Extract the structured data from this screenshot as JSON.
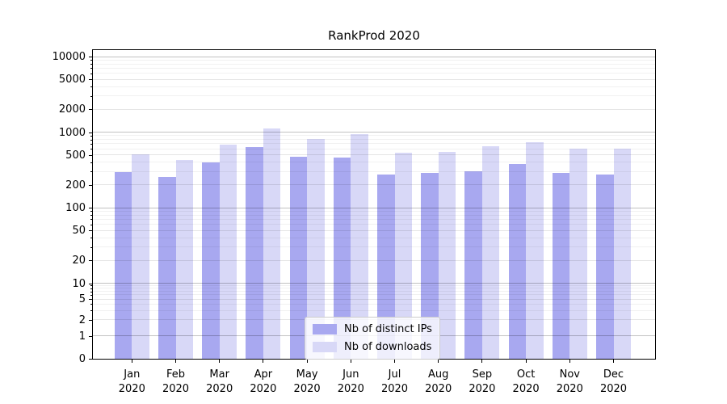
{
  "chart_data": {
    "type": "bar",
    "title": "RankProd 2020",
    "y_scale": "symlog",
    "grid": true,
    "categories": [
      "Jan 2020",
      "Feb 2020",
      "Mar 2020",
      "Apr 2020",
      "May 2020",
      "Jun 2020",
      "Jul 2020",
      "Aug 2020",
      "Sep 2020",
      "Oct 2020",
      "Nov 2020",
      "Dec 2020"
    ],
    "x_tick_months": [
      "Jan",
      "Feb",
      "Mar",
      "Apr",
      "May",
      "Jun",
      "Jul",
      "Aug",
      "Sep",
      "Oct",
      "Nov",
      "Dec"
    ],
    "x_tick_year": "2020",
    "y_ticks": [
      0,
      1,
      2,
      5,
      10,
      20,
      50,
      100,
      200,
      500,
      1000,
      2000,
      5000,
      10000
    ],
    "ylim": [
      0,
      12000
    ],
    "series": [
      {
        "name": "Nb of distinct IPs",
        "color": "#a8a8f0",
        "values": [
          300,
          257,
          400,
          650,
          480,
          465,
          280,
          295,
          310,
          380,
          290,
          280
        ]
      },
      {
        "name": "Nb of downloads",
        "color": "#d8d8f7",
        "values": [
          510,
          430,
          690,
          1120,
          815,
          960,
          540,
          560,
          655,
          740,
          615,
          605
        ]
      }
    ],
    "legend": {
      "position": "lower center",
      "entries": [
        "Nb of distinct IPs",
        "Nb of downloads"
      ]
    },
    "colors": {
      "distinct_ips": "#a8a8f0",
      "downloads": "#d8d8f7",
      "grid_major": "#c2c2c2",
      "grid_minor": "#efefef",
      "axis": "#000000"
    }
  }
}
